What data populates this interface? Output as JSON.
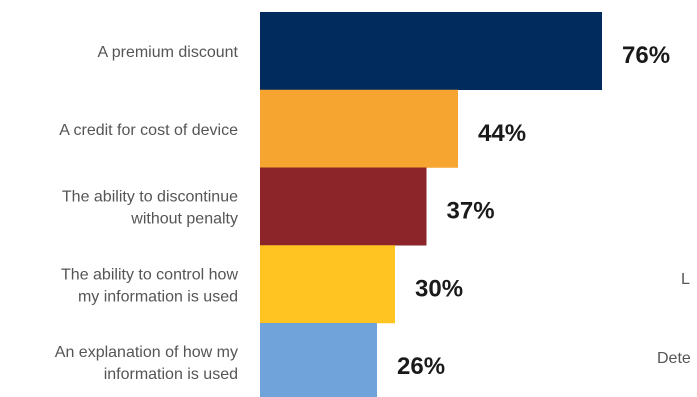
{
  "chart_data": {
    "type": "bar",
    "orientation": "horizontal",
    "categories": [
      [
        "A premium discount"
      ],
      [
        "A credit for cost of device"
      ],
      [
        "The ability to discontinue",
        "without penalty"
      ],
      [
        "The ability to control how",
        "my information is used"
      ],
      [
        "An explanation of how my",
        "information is used"
      ]
    ],
    "values": [
      76,
      44,
      37,
      30,
      26
    ],
    "value_labels": [
      "76%",
      "44%",
      "37%",
      "30%",
      "26%"
    ],
    "colors": [
      "#002B5C",
      "#F7A531",
      "#8B2529",
      "#FFC422",
      "#6FA3D9"
    ],
    "xlim": [
      0,
      100
    ],
    "grid": false,
    "legend": "none"
  },
  "edge_text": [
    "L",
    "Dete"
  ]
}
